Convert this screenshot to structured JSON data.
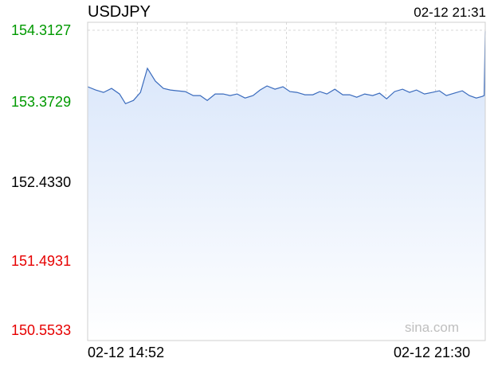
{
  "header": {
    "symbol": "USDJPY",
    "timestamp": "02-12 21:31"
  },
  "watermark": "sina.com",
  "colors": {
    "up": "#009900",
    "down": "#e60000",
    "neutral": "#000000",
    "line": "#3a6bbd",
    "fill_top": "#d6e4fa",
    "fill_bottom": "#ffffff",
    "grid": "#d8d8d8",
    "midline": "#9a9ab0"
  },
  "chart_data": {
    "type": "area",
    "title": "USDJPY",
    "reference_price": 152.433,
    "y_ticks": [
      {
        "value": 154.3127,
        "label": "154.3127",
        "tone": "up"
      },
      {
        "value": 153.3729,
        "label": "153.3729",
        "tone": "up"
      },
      {
        "value": 152.433,
        "label": "152.4330",
        "tone": "neutral"
      },
      {
        "value": 151.4931,
        "label": "151.4931",
        "tone": "down"
      },
      {
        "value": 150.5533,
        "label": "150.5533",
        "tone": "down"
      }
    ],
    "ylim": [
      150.5533,
      154.3127
    ],
    "x_labels": [
      "02-12 14:52",
      "02-12 21:30"
    ],
    "x_range": [
      "14:52",
      "21:31"
    ],
    "grid": true,
    "series": [
      {
        "x": [
          "14:52",
          "15:00",
          "15:08",
          "15:16",
          "15:24",
          "15:30",
          "15:38",
          "15:45",
          "15:52",
          "16:00",
          "16:08",
          "16:15",
          "16:22",
          "16:30",
          "16:38",
          "16:45",
          "16:52",
          "17:00",
          "17:08",
          "17:15",
          "17:22",
          "17:30",
          "17:38",
          "17:45",
          "17:52",
          "18:00",
          "18:08",
          "18:15",
          "18:22",
          "18:30",
          "18:38",
          "18:45",
          "18:52",
          "19:00",
          "19:08",
          "19:15",
          "19:22",
          "19:30",
          "19:38",
          "19:45",
          "19:52",
          "20:00",
          "20:08",
          "20:15",
          "20:22",
          "20:30",
          "20:38",
          "20:45",
          "20:52",
          "21:00",
          "21:08",
          "21:15",
          "21:22",
          "21:28",
          "21:30",
          "21:31"
        ],
        "values": [
          153.61,
          153.57,
          153.54,
          153.59,
          153.52,
          153.4,
          153.44,
          153.54,
          153.84,
          153.68,
          153.59,
          153.57,
          153.56,
          153.55,
          153.5,
          153.5,
          153.44,
          153.52,
          153.52,
          153.5,
          153.52,
          153.47,
          153.5,
          153.57,
          153.62,
          153.58,
          153.61,
          153.55,
          153.54,
          153.51,
          153.51,
          153.55,
          153.52,
          153.58,
          153.51,
          153.51,
          153.48,
          153.52,
          153.5,
          153.53,
          153.46,
          153.55,
          153.58,
          153.54,
          153.57,
          153.52,
          153.54,
          153.56,
          153.5,
          153.53,
          153.56,
          153.5,
          153.47,
          153.49,
          153.5,
          154.3
        ]
      }
    ]
  }
}
